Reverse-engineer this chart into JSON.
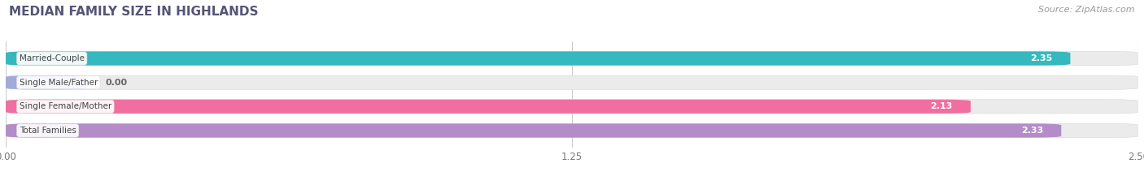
{
  "title": "MEDIAN FAMILY SIZE IN HIGHLANDS",
  "source": "Source: ZipAtlas.com",
  "categories": [
    "Married-Couple",
    "Single Male/Father",
    "Single Female/Mother",
    "Total Families"
  ],
  "values": [
    2.35,
    0.0,
    2.13,
    2.33
  ],
  "bar_colors": [
    "#35b8be",
    "#a0aadb",
    "#f06fa0",
    "#b48cc8"
  ],
  "xlim": [
    0,
    2.5
  ],
  "xticks": [
    0.0,
    1.25,
    2.5
  ],
  "xtick_labels": [
    "0.00",
    "1.25",
    "2.50"
  ],
  "bar_height": 0.58,
  "figsize": [
    14.06,
    2.33
  ],
  "dpi": 100,
  "background_color": "#ffffff",
  "bar_background_color": "#ebebeb",
  "value_label_color": "#ffffff",
  "category_label_color": "#444444",
  "title_color": "#555577",
  "source_color": "#999999"
}
